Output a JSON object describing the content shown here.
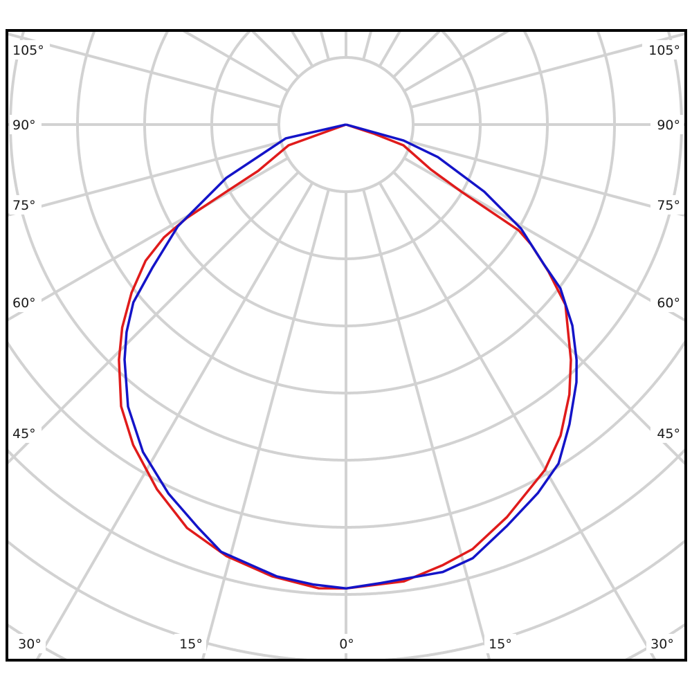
{
  "chart_data": {
    "type": "polar",
    "title": "",
    "angle_zero": "bottom",
    "angle_labels_left": [
      "105°",
      "90°",
      "75°",
      "60°",
      "45°"
    ],
    "angle_labels_right": [
      "105°",
      "90°",
      "75°",
      "60°",
      "45°"
    ],
    "angle_labels_bottom": [
      "30°",
      "15°",
      "0°",
      "15°",
      "30°"
    ],
    "angular_grid_step_deg": 15,
    "radial_rings": 10,
    "radial_unit": "grid ring",
    "grid": true,
    "colors": {
      "grid": "#d2d2d2",
      "frame": "#000000"
    },
    "series": [
      {
        "color": "#e01b1b",
        "points_angle_radius": [
          [
            -90,
            0
          ],
          [
            -70.1,
            0.91
          ],
          [
            -62.2,
            1.48
          ],
          [
            -60.7,
            2.04
          ],
          [
            -59.6,
            2.75
          ],
          [
            -58.2,
            3.19
          ],
          [
            -55.8,
            3.61
          ],
          [
            -51.9,
            4.06
          ],
          [
            -47.8,
            4.5
          ],
          [
            -44.0,
            4.87
          ],
          [
            -38.6,
            5.37
          ],
          [
            -33.6,
            5.73
          ],
          [
            -27.4,
            6.12
          ],
          [
            -21.5,
            6.46
          ],
          [
            -15.5,
            6.67
          ],
          [
            -9.3,
            6.82
          ],
          [
            -3.4,
            6.92
          ],
          [
            0,
            6.91
          ],
          [
            7.2,
            6.86
          ],
          [
            12.4,
            6.72
          ],
          [
            16.6,
            6.6
          ],
          [
            22.3,
            6.32
          ],
          [
            29.9,
            5.94
          ],
          [
            34.6,
            5.63
          ],
          [
            39.6,
            5.22
          ],
          [
            43.7,
            4.85
          ],
          [
            50.6,
            4.23
          ],
          [
            54.0,
            3.73
          ],
          [
            57.1,
            3.28
          ],
          [
            58.5,
            3.02
          ],
          [
            59.8,
            1.99
          ],
          [
            62.1,
            1.43
          ],
          [
            70.1,
            0.91
          ],
          [
            72,
            0.43
          ],
          [
            90,
            0
          ]
        ]
      },
      {
        "color": "#1414c8",
        "points_angle_radius": [
          [
            -90,
            0
          ],
          [
            -77.1,
            0.92
          ],
          [
            -66.0,
            1.95
          ],
          [
            -58.8,
            2.93
          ],
          [
            -53.5,
            3.59
          ],
          [
            -50.1,
            4.13
          ],
          [
            -46.6,
            4.5
          ],
          [
            -43.3,
            4.81
          ],
          [
            -37.7,
            5.31
          ],
          [
            -31.8,
            5.74
          ],
          [
            -25.7,
            6.1
          ],
          [
            -20.1,
            6.4
          ],
          [
            -16.3,
            6.63
          ],
          [
            -8.7,
            6.81
          ],
          [
            -4.0,
            6.87
          ],
          [
            0,
            6.91
          ],
          [
            4.3,
            6.85
          ],
          [
            12.2,
            6.82
          ],
          [
            16.3,
            6.73
          ],
          [
            21.9,
            6.44
          ],
          [
            27.5,
            6.19
          ],
          [
            32.1,
            5.96
          ],
          [
            36.7,
            5.57
          ],
          [
            41.8,
            5.15
          ],
          [
            44.4,
            4.91
          ],
          [
            48.4,
            4.51
          ],
          [
            52.6,
            4.02
          ],
          [
            54.7,
            3.62
          ],
          [
            59.3,
            3.03
          ],
          [
            64.1,
            2.29
          ],
          [
            70.5,
            1.45
          ],
          [
            74.5,
            0.89
          ],
          [
            90,
            0
          ]
        ]
      }
    ]
  }
}
